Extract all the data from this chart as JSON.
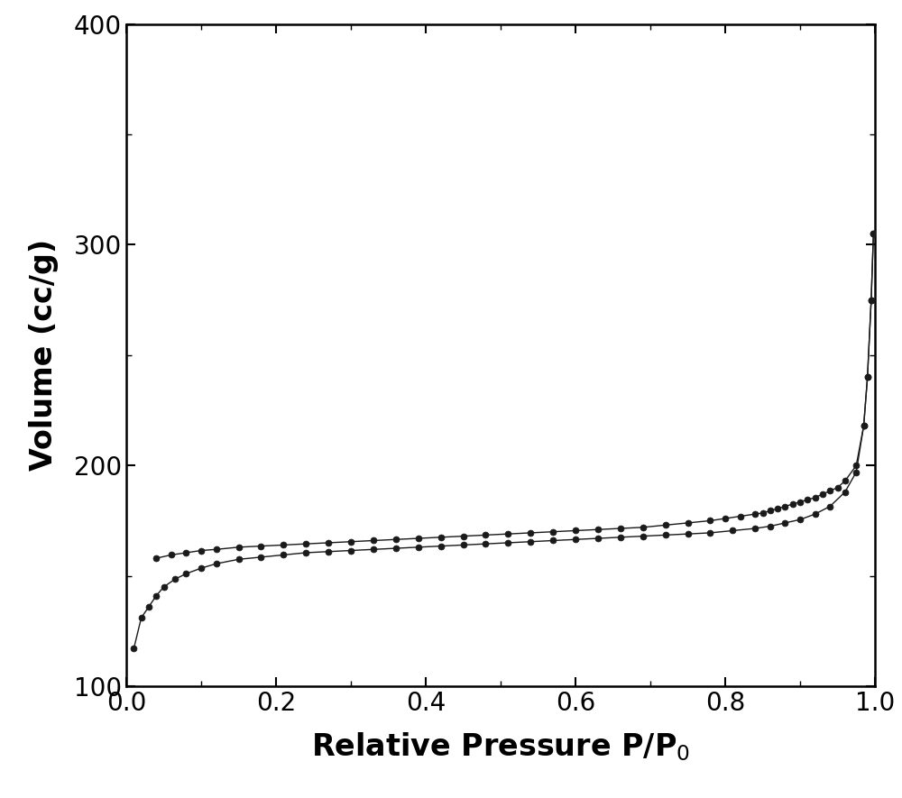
{
  "adsorption_x": [
    0.01,
    0.02,
    0.03,
    0.04,
    0.05,
    0.065,
    0.08,
    0.1,
    0.12,
    0.15,
    0.18,
    0.21,
    0.24,
    0.27,
    0.3,
    0.33,
    0.36,
    0.39,
    0.42,
    0.45,
    0.48,
    0.51,
    0.54,
    0.57,
    0.6,
    0.63,
    0.66,
    0.69,
    0.72,
    0.75,
    0.78,
    0.81,
    0.84,
    0.86,
    0.88,
    0.9,
    0.92,
    0.94,
    0.96,
    0.975,
    0.985,
    0.99,
    0.995,
    0.998
  ],
  "adsorption_y": [
    117.0,
    131.0,
    136.0,
    141.0,
    145.0,
    148.5,
    151.0,
    153.5,
    155.5,
    157.5,
    158.5,
    159.5,
    160.5,
    161.0,
    161.5,
    162.0,
    162.5,
    163.0,
    163.5,
    164.0,
    164.5,
    165.0,
    165.5,
    166.0,
    166.5,
    167.0,
    167.5,
    168.0,
    168.5,
    169.0,
    169.5,
    170.5,
    171.5,
    172.5,
    174.0,
    175.5,
    178.0,
    181.5,
    188.0,
    197.0,
    218.0,
    240.0,
    275.0,
    305.0
  ],
  "desorption_x": [
    0.998,
    0.995,
    0.99,
    0.985,
    0.975,
    0.96,
    0.95,
    0.94,
    0.93,
    0.92,
    0.91,
    0.9,
    0.89,
    0.88,
    0.87,
    0.86,
    0.85,
    0.84,
    0.82,
    0.8,
    0.78,
    0.75,
    0.72,
    0.69,
    0.66,
    0.63,
    0.6,
    0.57,
    0.54,
    0.51,
    0.48,
    0.45,
    0.42,
    0.39,
    0.36,
    0.33,
    0.3,
    0.27,
    0.24,
    0.21,
    0.18,
    0.15,
    0.12,
    0.1,
    0.08,
    0.06,
    0.04
  ],
  "desorption_y": [
    305.0,
    275.0,
    240.0,
    218.0,
    200.0,
    193.0,
    190.0,
    188.5,
    187.0,
    185.5,
    184.5,
    183.5,
    182.5,
    181.5,
    180.5,
    179.5,
    178.5,
    178.0,
    177.0,
    176.0,
    175.0,
    174.0,
    173.0,
    172.0,
    171.5,
    171.0,
    170.5,
    170.0,
    169.5,
    169.0,
    168.5,
    168.0,
    167.5,
    167.0,
    166.5,
    166.0,
    165.5,
    165.0,
    164.5,
    164.0,
    163.5,
    163.0,
    162.0,
    161.5,
    160.5,
    159.5,
    158.0
  ],
  "ylabel": "Volume (cc/g)",
  "xlim": [
    0.0,
    1.0
  ],
  "ylim": [
    100,
    400
  ],
  "xticks": [
    0.0,
    0.2,
    0.4,
    0.6,
    0.8,
    1.0
  ],
  "yticks": [
    100,
    200,
    300,
    400
  ],
  "line_color": "#1a1a1a",
  "marker_color": "#1a1a1a",
  "bg_color": "#ffffff",
  "marker_size": 5,
  "line_width": 1.0,
  "xlabel_fontsize": 24,
  "ylabel_fontsize": 24,
  "tick_fontsize": 20
}
